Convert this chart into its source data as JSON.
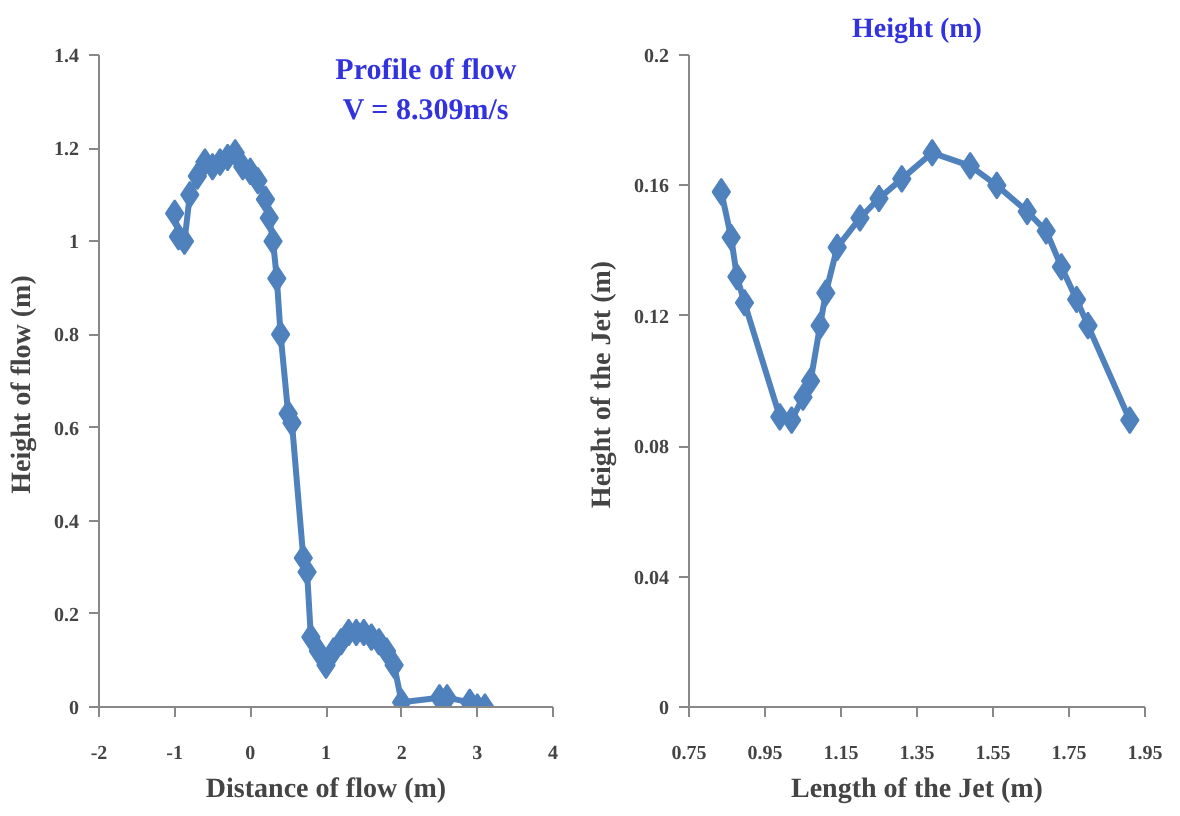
{
  "chart_data": [
    {
      "type": "line",
      "title": "Profile of flow",
      "subtitle": "V = 8.309m/s",
      "xlabel": "Distance of flow (m)",
      "ylabel": "Height of flow  (m)",
      "xlim": [
        -2,
        4
      ],
      "xticks": [
        -2,
        -1,
        0,
        1,
        2,
        3,
        4
      ],
      "ylim": [
        0,
        1.4
      ],
      "yticks": [
        0,
        0.2,
        0.4,
        0.6,
        0.8,
        1,
        1.2,
        1.4
      ],
      "grid": false,
      "marker": "diamond",
      "line_style": "solid",
      "x": [
        -1.0,
        -0.95,
        -0.87,
        -0.8,
        -0.7,
        -0.6,
        -0.5,
        -0.4,
        -0.3,
        -0.2,
        -0.1,
        0.0,
        0.1,
        0.2,
        0.25,
        0.3,
        0.35,
        0.4,
        0.5,
        0.55,
        0.7,
        0.75,
        0.8,
        0.9,
        1.0,
        1.1,
        1.2,
        1.3,
        1.4,
        1.5,
        1.6,
        1.7,
        1.8,
        1.9,
        2.0,
        2.5,
        2.6,
        2.9,
        3.0,
        3.1
      ],
      "series": [
        {
          "color": "#4f81bd",
          "values": [
            1.06,
            1.01,
            1.0,
            1.1,
            1.14,
            1.17,
            1.16,
            1.17,
            1.18,
            1.19,
            1.16,
            1.15,
            1.13,
            1.09,
            1.05,
            1.0,
            0.92,
            0.8,
            0.63,
            0.61,
            0.32,
            0.29,
            0.15,
            0.12,
            0.09,
            0.12,
            0.14,
            0.16,
            0.16,
            0.16,
            0.15,
            0.14,
            0.12,
            0.09,
            0.01,
            0.02,
            0.02,
            0.01,
            0.0,
            0.0
          ]
        }
      ]
    },
    {
      "type": "line",
      "title": "Height (m)",
      "xlabel": "Length of the Jet (m)",
      "ylabel": "Height of the  Jet (m)",
      "xlim": [
        0.75,
        1.95
      ],
      "xticks": [
        0.75,
        0.95,
        1.15,
        1.35,
        1.55,
        1.75,
        1.95
      ],
      "ylim": [
        0,
        0.2
      ],
      "yticks": [
        0,
        0.04,
        0.08,
        0.12,
        0.16,
        0.2
      ],
      "grid": false,
      "marker": "diamond",
      "line_style": "solid",
      "x": [
        0.835,
        0.861,
        0.876,
        0.896,
        0.989,
        1.02,
        1.05,
        1.07,
        1.095,
        1.11,
        1.14,
        1.2,
        1.25,
        1.31,
        1.39,
        1.49,
        1.56,
        1.64,
        1.69,
        1.73,
        1.77,
        1.8,
        1.91
      ],
      "series": [
        {
          "color": "#4f81bd",
          "values": [
            0.158,
            0.144,
            0.132,
            0.124,
            0.089,
            0.088,
            0.095,
            0.1,
            0.117,
            0.127,
            0.141,
            0.15,
            0.156,
            0.162,
            0.17,
            0.166,
            0.16,
            0.152,
            0.146,
            0.135,
            0.125,
            0.117,
            0.088
          ]
        }
      ]
    }
  ]
}
